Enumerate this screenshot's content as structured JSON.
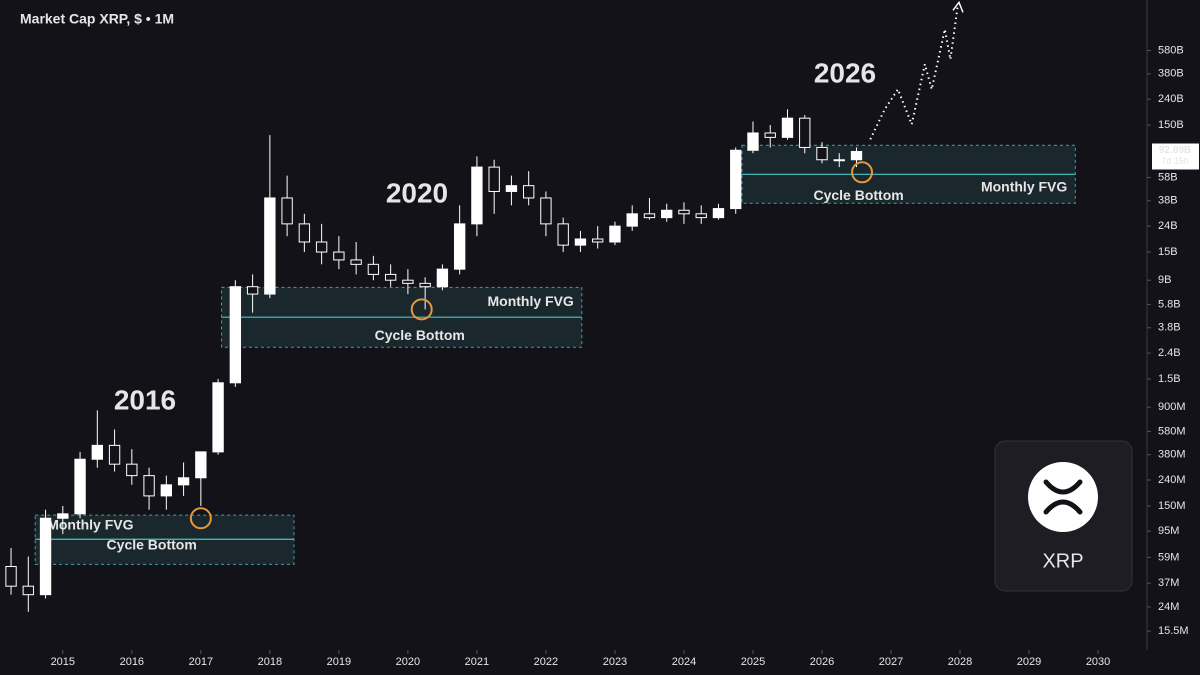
{
  "chart_data": {
    "type": "candlestick",
    "title": "Market Cap XRP, $ • 1M",
    "log_scale": true,
    "up_color": "#ffffff",
    "down_color": "#131218",
    "x": [
      2014.25,
      2014.5,
      2014.75,
      2015,
      2015.25,
      2015.5,
      2015.75,
      2016,
      2016.25,
      2016.5,
      2016.75,
      2017,
      2017.25,
      2017.5,
      2017.75,
      2018,
      2018.25,
      2018.5,
      2018.75,
      2019,
      2019.25,
      2019.5,
      2019.75,
      2020,
      2020.25,
      2020.5,
      2020.75,
      2021,
      2021.25,
      2021.5,
      2021.75,
      2022,
      2022.25,
      2022.5,
      2022.75,
      2023,
      2023.25,
      2023.5,
      2023.75,
      2024,
      2024.25,
      2024.5,
      2024.75,
      2025,
      2025.25,
      2025.5,
      2025.75,
      2026,
      2026.25,
      2026.5
    ],
    "open": [
      50000000.0,
      35000000.0,
      30000000.0,
      120000000.0,
      130000000.0,
      350000000.0,
      450000000.0,
      320000000.0,
      260000000.0,
      180000000.0,
      220000000.0,
      250000000.0,
      400000000.0,
      1400000000.0,
      8000000000.0,
      7000000000.0,
      40000000000.0,
      25000000000.0,
      18000000000.0,
      15000000000.0,
      13000000000.0,
      12000000000.0,
      10000000000.0,
      9000000000.0,
      8500000000.0,
      8000000000.0,
      11000000000.0,
      25000000000.0,
      70000000000.0,
      45000000000.0,
      50000000000.0,
      40000000000.0,
      25000000000.0,
      17000000000.0,
      19000000000.0,
      18000000000.0,
      24000000000.0,
      30000000000.0,
      28000000000.0,
      32000000000.0,
      30000000000.0,
      28000000000.0,
      33000000000.0,
      95000000000.0,
      130000000000.0,
      120000000000.0,
      170000000000.0,
      100000000000.0,
      80000000000.0,
      80000000000.0
    ],
    "high": [
      70000000.0,
      60000000.0,
      140000000.0,
      150000000.0,
      400000000.0,
      850000000.0,
      600000000.0,
      420000000.0,
      300000000.0,
      260000000.0,
      330000000.0,
      300000000.0,
      1500000000.0,
      9000000000.0,
      10000000000.0,
      125000000000.0,
      60000000000.0,
      30000000000.0,
      25000000000.0,
      20000000000.0,
      18000000000.0,
      14000000000.0,
      12000000000.0,
      11000000000.0,
      9500000000.0,
      12000000000.0,
      35000000000.0,
      85000000000.0,
      80000000000.0,
      60000000000.0,
      65000000000.0,
      45000000000.0,
      28000000000.0,
      22000000000.0,
      24000000000.0,
      26000000000.0,
      35000000000.0,
      40000000000.0,
      36000000000.0,
      37000000000.0,
      35000000000.0,
      36000000000.0,
      100000000000.0,
      160000000000.0,
      150000000000.0,
      200000000000.0,
      180000000000.0,
      110000000000.0,
      90000000000.0,
      100000000000.0
    ],
    "low": [
      30000000.0,
      22000000.0,
      28000000.0,
      90000000.0,
      120000000.0,
      300000000.0,
      280000000.0,
      220000000.0,
      140000000.0,
      140000000.0,
      180000000.0,
      150000000.0,
      380000000.0,
      1300000000.0,
      5000000000.0,
      6500000000.0,
      20000000000.0,
      15000000000.0,
      12000000000.0,
      11000000000.0,
      10000000000.0,
      9000000000.0,
      8000000000.0,
      7000000000.0,
      5300000000.0,
      7500000000.0,
      10000000000.0,
      20000000000.0,
      30000000000.0,
      35000000000.0,
      35000000000.0,
      20000000000.0,
      15000000000.0,
      15000000000.0,
      16000000000.0,
      17000000000.0,
      22000000000.0,
      27000000000.0,
      26000000000.0,
      25000000000.0,
      25000000000.0,
      27000000000.0,
      30000000000.0,
      90000000000.0,
      100000000000.0,
      115000000000.0,
      90000000000.0,
      75000000000.0,
      70000000000.0,
      70000000000.0
    ],
    "close": [
      35000000.0,
      30000000.0,
      120000000.0,
      130000000.0,
      350000000.0,
      450000000.0,
      320000000.0,
      260000000.0,
      180000000.0,
      220000000.0,
      250000000.0,
      400000000.0,
      1400000000.0,
      8000000000.0,
      7000000000.0,
      40000000000.0,
      25000000000.0,
      18000000000.0,
      15000000000.0,
      13000000000.0,
      12000000000.0,
      10000000000.0,
      9000000000.0,
      8500000000.0,
      8000000000.0,
      11000000000.0,
      25000000000.0,
      70000000000.0,
      45000000000.0,
      50000000000.0,
      40000000000.0,
      25000000000.0,
      17000000000.0,
      19000000000.0,
      18000000000.0,
      24000000000.0,
      30000000000.0,
      28000000000.0,
      32000000000.0,
      30000000000.0,
      28000000000.0,
      33000000000.0,
      95000000000.0,
      130000000000.0,
      120000000000.0,
      170000000000.0,
      100000000000.0,
      80000000000.0,
      80000000000.0,
      92890000000.0
    ],
    "xlim": [
      2014.09,
      2030.68
    ],
    "xticks": [
      2015,
      2016,
      2017,
      2018,
      2019,
      2020,
      2021,
      2022,
      2023,
      2024,
      2025,
      2026,
      2027,
      2028,
      2029,
      2030
    ],
    "ylim": [
      11000000,
      1450000000000
    ],
    "yticks": [
      {
        "value": 580000000000,
        "label": "580B"
      },
      {
        "value": 380000000000,
        "label": "380B"
      },
      {
        "value": 240000000000,
        "label": "240B"
      },
      {
        "value": 150000000000,
        "label": "150B"
      },
      {
        "value": 58000000000,
        "label": "58B"
      },
      {
        "value": 38000000000,
        "label": "38B"
      },
      {
        "value": 24000000000,
        "label": "24B"
      },
      {
        "value": 15000000000,
        "label": "15B"
      },
      {
        "value": 9000000000,
        "label": "9B"
      },
      {
        "value": 5800000000,
        "label": "5.8B"
      },
      {
        "value": 3800000000,
        "label": "3.8B"
      },
      {
        "value": 2400000000,
        "label": "2.4B"
      },
      {
        "value": 1500000000,
        "label": "1.5B"
      },
      {
        "value": 900000000,
        "label": "900M"
      },
      {
        "value": 580000000,
        "label": "580M"
      },
      {
        "value": 380000000,
        "label": "380M"
      },
      {
        "value": 240000000,
        "label": "240M"
      },
      {
        "value": 150000000,
        "label": "150M"
      },
      {
        "value": 95000000,
        "label": "95M"
      },
      {
        "value": 59000000,
        "label": "59M"
      },
      {
        "value": 37000000,
        "label": "37M"
      },
      {
        "value": 24000000,
        "label": "24M"
      },
      {
        "value": 15500000,
        "label": "15.5M"
      }
    ],
    "price_tag": {
      "value": 92890000000,
      "label": "92.89B",
      "countdown": "7d 15h"
    },
    "zones": [
      {
        "x0": 2014.6,
        "x1": 2018.35,
        "top": 127000000,
        "bottom": 52000000,
        "mid": 82000000,
        "label": "Monthly FVG",
        "note": "Cycle Bottom"
      },
      {
        "x0": 2017.3,
        "x1": 2022.52,
        "top": 7900000000,
        "bottom": 2670000000,
        "mid": 4600000000,
        "label": "Monthly FVG",
        "note": "Cycle Bottom"
      },
      {
        "x0": 2024.84,
        "x1": 2029.67,
        "top": 104000000000,
        "bottom": 36300000000,
        "mid": 61400000000,
        "label": "Monthly FVG",
        "note": "Cycle Bottom"
      }
    ],
    "markers": [
      {
        "x": 2017.0,
        "y": 120000000
      },
      {
        "x": 2020.2,
        "y": 5300000000
      },
      {
        "x": 2026.58,
        "y": 63700000000
      }
    ],
    "projection": {
      "x": [
        2026.7,
        2026.91,
        2027.1,
        2027.3,
        2027.49,
        2027.59,
        2027.78,
        2027.86,
        2027.97
      ],
      "y": [
        116000000000,
        200000000000,
        287000000000,
        152000000000,
        452000000000,
        287000000000,
        852000000000,
        494000000000,
        1340000000000
      ]
    },
    "annotations": [
      "2016",
      "2020",
      "2026"
    ],
    "logo": "XRP"
  }
}
